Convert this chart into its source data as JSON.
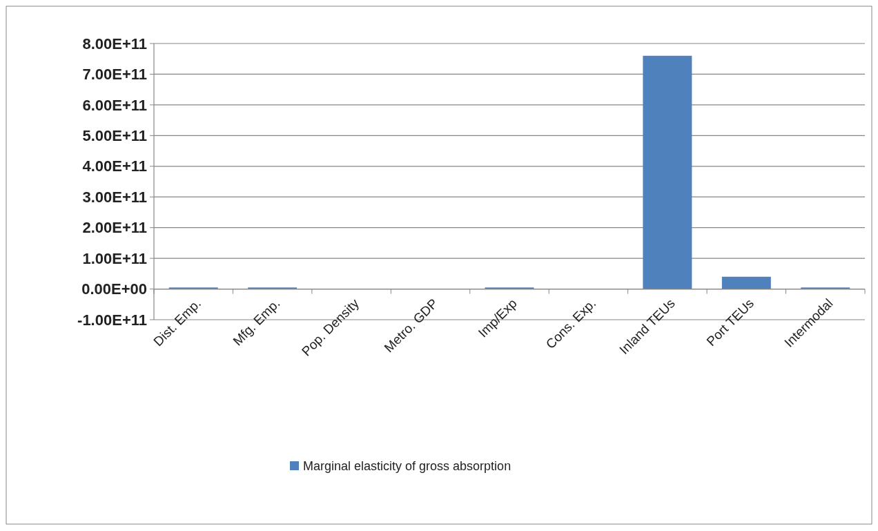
{
  "chart_data": {
    "type": "bar",
    "categories": [
      "Dist. Emp.",
      "Mfg. Emp.",
      "Pop. Density",
      "Metro. GDP",
      "Imp/Exp",
      "Cons. Exp.",
      "Inland TEUs",
      "Port TEUs",
      "Intermodal"
    ],
    "series": [
      {
        "name": "Marginal elasticity of gross absorption",
        "color": "#4f81bd",
        "values": [
          5000000000.0,
          5000000000.0,
          0,
          0,
          5000000000.0,
          0,
          760000000000.0,
          40000000000.0,
          5000000000.0
        ]
      }
    ],
    "ylim": [
      -100000000000.0,
      800000000000.0
    ],
    "yticks": [
      {
        "value": -100000000000.0,
        "label": "-1.00E+11"
      },
      {
        "value": 0,
        "label": "0.00E+00"
      },
      {
        "value": 100000000000.0,
        "label": "1.00E+11"
      },
      {
        "value": 200000000000.0,
        "label": "2.00E+11"
      },
      {
        "value": 300000000000.0,
        "label": "3.00E+11"
      },
      {
        "value": 400000000000.0,
        "label": "4.00E+11"
      },
      {
        "value": 500000000000.0,
        "label": "5.00E+11"
      },
      {
        "value": 600000000000.0,
        "label": "6.00E+11"
      },
      {
        "value": 700000000000.0,
        "label": "7.00E+11"
      },
      {
        "value": 800000000000.0,
        "label": "8.00E+11"
      }
    ],
    "grid": "y",
    "legend": "bottom"
  }
}
